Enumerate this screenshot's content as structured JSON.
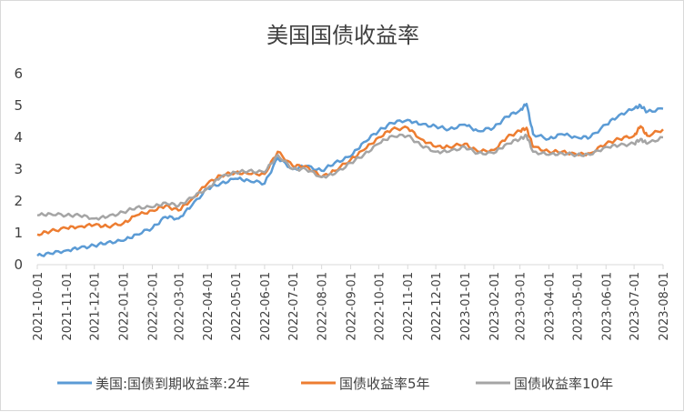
{
  "chart_data": {
    "type": "line",
    "title": "美国国债收益率",
    "xlabel": "",
    "ylabel": "",
    "ylim": [
      0,
      6
    ],
    "yticks": [
      "0",
      "1",
      "2",
      "3",
      "4",
      "5",
      "6"
    ],
    "grid": false,
    "legend": "bottom",
    "x_start": "2021-10-01",
    "x_end": "2023-08-01",
    "xticks": [
      "2021-10-01",
      "2021-11-01",
      "2021-12-01",
      "2022-01-01",
      "2022-02-01",
      "2022-03-01",
      "2022-04-01",
      "2022-05-01",
      "2022-06-01",
      "2022-07-01",
      "2022-08-01",
      "2022-09-01",
      "2022-10-01",
      "2022-11-01",
      "2022-12-01",
      "2023-01-01",
      "2023-02-01",
      "2023-03-01",
      "2023-04-01",
      "2023-05-01",
      "2023-06-01",
      "2023-07-01",
      "2023-08-01"
    ],
    "x": [
      "2021-10-01",
      "2021-10-15",
      "2021-11-01",
      "2021-11-15",
      "2021-12-01",
      "2021-12-15",
      "2022-01-01",
      "2022-01-15",
      "2022-02-01",
      "2022-02-15",
      "2022-03-01",
      "2022-03-15",
      "2022-04-01",
      "2022-04-15",
      "2022-05-01",
      "2022-05-15",
      "2022-06-01",
      "2022-06-15",
      "2022-07-01",
      "2022-07-15",
      "2022-08-01",
      "2022-08-15",
      "2022-09-01",
      "2022-09-15",
      "2022-10-01",
      "2022-10-15",
      "2022-11-01",
      "2022-11-15",
      "2022-12-01",
      "2022-12-15",
      "2023-01-01",
      "2023-01-15",
      "2023-02-01",
      "2023-02-15",
      "2023-03-01",
      "2023-03-08",
      "2023-03-15",
      "2023-04-01",
      "2023-04-15",
      "2023-05-01",
      "2023-05-15",
      "2023-06-01",
      "2023-06-15",
      "2023-07-01",
      "2023-07-08",
      "2023-07-15",
      "2023-08-01"
    ],
    "series": [
      {
        "name": "美国:国债到期收益率:2年",
        "color": "#5b9bd5",
        "values": [
          0.28,
          0.35,
          0.45,
          0.52,
          0.6,
          0.7,
          0.75,
          0.95,
          1.15,
          1.5,
          1.45,
          1.85,
          2.4,
          2.55,
          2.7,
          2.65,
          2.55,
          3.35,
          3.0,
          3.1,
          2.95,
          3.2,
          3.4,
          3.85,
          4.2,
          4.45,
          4.55,
          4.4,
          4.35,
          4.25,
          4.4,
          4.2,
          4.3,
          4.65,
          4.85,
          5.05,
          4.1,
          3.95,
          4.1,
          4.0,
          4.0,
          4.4,
          4.7,
          4.9,
          5.0,
          4.8,
          4.9
        ]
      },
      {
        "name": "国债收益率5年",
        "color": "#ed7d31",
        "values": [
          0.95,
          1.05,
          1.15,
          1.2,
          1.25,
          1.2,
          1.3,
          1.55,
          1.7,
          1.85,
          1.7,
          2.05,
          2.55,
          2.8,
          2.9,
          2.85,
          2.85,
          3.55,
          3.1,
          3.1,
          2.75,
          2.95,
          3.3,
          3.6,
          4.0,
          4.25,
          4.3,
          3.95,
          3.7,
          3.7,
          3.8,
          3.55,
          3.6,
          4.0,
          4.2,
          4.3,
          3.7,
          3.55,
          3.55,
          3.45,
          3.5,
          3.8,
          3.95,
          4.05,
          4.35,
          4.05,
          4.25
        ]
      },
      {
        "name": "国债收益率10年",
        "color": "#a5a5a5",
        "values": [
          1.55,
          1.6,
          1.55,
          1.55,
          1.45,
          1.5,
          1.65,
          1.8,
          1.8,
          1.95,
          1.85,
          2.1,
          2.4,
          2.75,
          2.9,
          2.95,
          2.9,
          3.45,
          3.0,
          3.0,
          2.75,
          2.85,
          3.2,
          3.45,
          3.8,
          4.05,
          4.05,
          3.75,
          3.55,
          3.55,
          3.7,
          3.5,
          3.5,
          3.8,
          3.95,
          4.05,
          3.55,
          3.45,
          3.5,
          3.45,
          3.45,
          3.7,
          3.75,
          3.8,
          3.95,
          3.8,
          4.0
        ]
      }
    ]
  }
}
